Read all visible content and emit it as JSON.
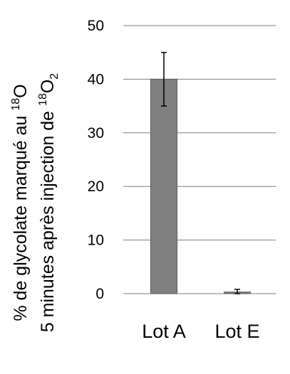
{
  "chart_data": {
    "type": "bar",
    "categories": [
      "Lot A",
      "Lot E"
    ],
    "values": [
      40,
      0.3
    ],
    "error": [
      5,
      0.5
    ],
    "ylim": [
      0,
      50
    ],
    "yticks": [
      "0",
      "10",
      "20",
      "30",
      "40",
      "50"
    ],
    "ylabel": {
      "line1_prefix": "% de glycolate marqué au ",
      "line1_sup": "18",
      "line1_suffix": "O",
      "line2_prefix": "5 minutes après injection de ",
      "line2_sup": "18",
      "line2_suffix": "O",
      "line2_sub": "2"
    },
    "grid": true,
    "colors": {
      "bar": "#808080",
      "bar_edge": "#5a5a5a",
      "grid": "#7f7f7f",
      "error": "#000000"
    }
  }
}
